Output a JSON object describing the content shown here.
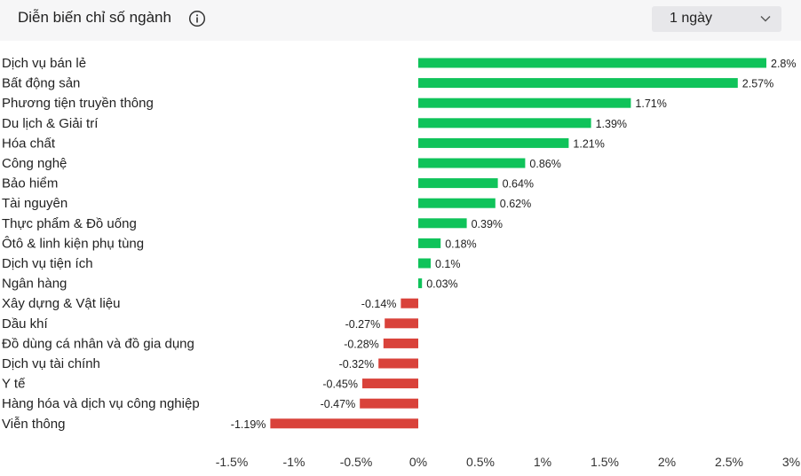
{
  "header": {
    "title": "Diễn biến chỉ số ngành",
    "info_icon": "info-icon",
    "period_selected": "1 ngày",
    "chevron_icon": "chevron-down-icon"
  },
  "chart_data": {
    "type": "bar",
    "orientation": "horizontal",
    "categories": [
      "Dịch vụ bán lẻ",
      "Bất động sản",
      "Phương tiện truyền thông",
      "Du lịch & Giải trí",
      "Hóa chất",
      "Công nghệ",
      "Bảo hiểm",
      "Tài nguyên",
      "Thực phẩm & Đồ uống",
      "Ôtô & linh kiện phụ tùng",
      "Dịch vụ tiện ích",
      "Ngân hàng",
      "Xây dựng & Vật liệu",
      "Dầu khí",
      "Đồ dùng cá nhân và đồ gia dụng",
      "Dịch vụ tài chính",
      "Y tế",
      "Hàng hóa và dịch vụ công nghiệp",
      "Viễn thông"
    ],
    "values": [
      2.8,
      2.57,
      1.71,
      1.39,
      1.21,
      0.86,
      0.64,
      0.62,
      0.39,
      0.18,
      0.1,
      0.03,
      -0.14,
      -0.27,
      -0.28,
      -0.32,
      -0.45,
      -0.47,
      -1.19
    ],
    "value_labels": [
      "2.8%",
      "2.57%",
      "1.71%",
      "1.39%",
      "1.21%",
      "0.86%",
      "0.64%",
      "0.62%",
      "0.39%",
      "0.18%",
      "0.1%",
      "0.03%",
      "-0.14%",
      "-0.27%",
      "-0.28%",
      "-0.32%",
      "-0.45%",
      "-0.47%",
      "-1.19%"
    ],
    "x_ticks": [
      -1.5,
      -1,
      -0.5,
      0,
      0.5,
      1,
      1.5,
      2,
      2.5,
      3
    ],
    "x_tick_labels": [
      "-1.5%",
      "-1%",
      "-0.5%",
      "0%",
      "0.5%",
      "1%",
      "1.5%",
      "2%",
      "2.5%",
      "3%"
    ],
    "xlim": [
      -1.5,
      3
    ],
    "grid": false,
    "colors": {
      "positive": "#0fc35a",
      "negative": "#d9423a"
    }
  }
}
